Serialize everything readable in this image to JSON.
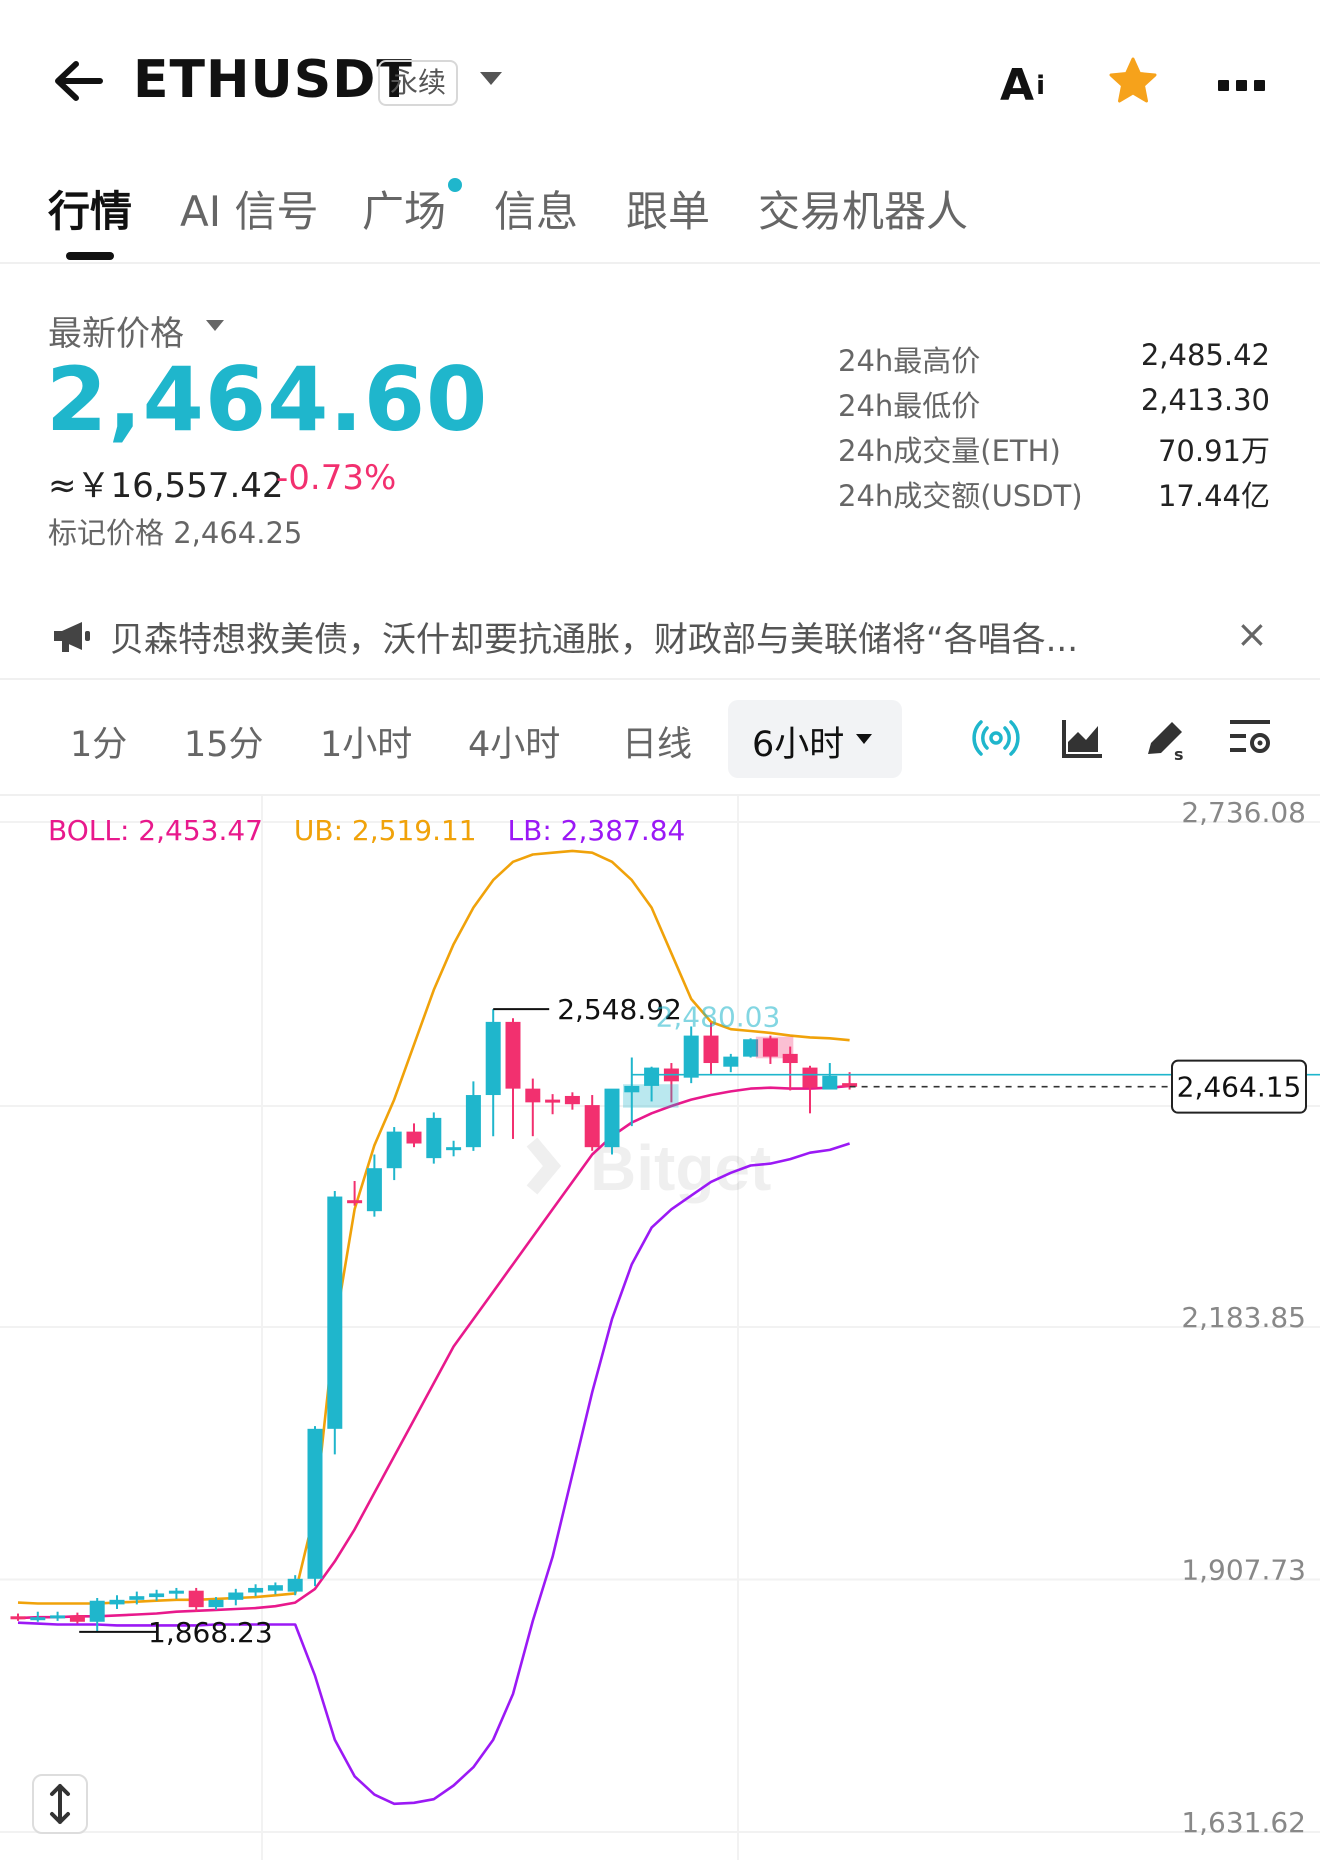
{
  "header": {
    "symbol": "ETHUSDT",
    "contract_type": "永续",
    "ai_label": "A",
    "ai_sub": "i"
  },
  "tabs": [
    {
      "label": "行情",
      "active": true
    },
    {
      "label": "AI 信号"
    },
    {
      "label": "广场",
      "has_dot": true
    },
    {
      "label": "信息"
    },
    {
      "label": "跟单"
    },
    {
      "label": "交易机器人"
    }
  ],
  "price": {
    "label": "最新价格",
    "last": "2,464.60",
    "cny": "≈￥16,557.42",
    "change": "-0.73%",
    "mark_label": "标记价格",
    "mark_value": "2,464.25",
    "stats": [
      {
        "label": "24h最高价",
        "value": "2,485.42"
      },
      {
        "label": "24h最低价",
        "value": "2,413.30"
      },
      {
        "label": "24h成交量(ETH)",
        "value": "70.91万"
      },
      {
        "label": "24h成交额(USDT)",
        "value": "17.44亿"
      }
    ]
  },
  "news": {
    "text": "贝森特想救美债，沃什却要抗通胀，财政部与美联储将“各唱各...",
    "close": "×"
  },
  "intervals": {
    "items": [
      "1分",
      "15分",
      "1小时",
      "4小时",
      "日线"
    ],
    "active": "6小时",
    "tools": [
      "broadcast-icon",
      "area-chart-icon",
      "drawing-pen-icon",
      "indicator-settings-icon"
    ]
  },
  "colors": {
    "up": "#1fb6cc",
    "down": "#f2306f",
    "ub": "#f0a20a",
    "mid": "#e8198c",
    "lb": "#9b19f5"
  },
  "chart_data": {
    "type": "candlestick",
    "indicator": {
      "boll_label": "BOLL: 2,453.47",
      "ub_label": "UB: 2,519.11",
      "lb_label": "LB: 2,387.84"
    },
    "y_ticks": [
      2736.08,
      2183.85,
      1907.73,
      1631.62
    ],
    "y_tick_labels": [
      "2,736.08",
      "2,183.85",
      "1,907.73",
      "1,631.62"
    ],
    "ylim": [
      1631.62,
      2736.08
    ],
    "annotations": {
      "high_label": "2,548.92",
      "low_label": "1,868.23",
      "faded_label": "2,480.03",
      "current_price": 2464.15,
      "current_label": "2,464.15"
    },
    "candles": [
      {
        "o": 1885,
        "h": 1888,
        "l": 1880,
        "c": 1882
      },
      {
        "o": 1882,
        "h": 1890,
        "l": 1879,
        "c": 1884
      },
      {
        "o": 1885,
        "h": 1890,
        "l": 1880,
        "c": 1886
      },
      {
        "o": 1886,
        "h": 1889,
        "l": 1877,
        "c": 1879
      },
      {
        "o": 1879,
        "h": 1905,
        "l": 1868,
        "c": 1902
      },
      {
        "o": 1898,
        "h": 1908,
        "l": 1893,
        "c": 1903
      },
      {
        "o": 1903,
        "h": 1912,
        "l": 1898,
        "c": 1907
      },
      {
        "o": 1906,
        "h": 1914,
        "l": 1902,
        "c": 1910
      },
      {
        "o": 1910,
        "h": 1916,
        "l": 1904,
        "c": 1913
      },
      {
        "o": 1913,
        "h": 1916,
        "l": 1890,
        "c": 1895
      },
      {
        "o": 1895,
        "h": 1906,
        "l": 1892,
        "c": 1903
      },
      {
        "o": 1903,
        "h": 1915,
        "l": 1897,
        "c": 1911
      },
      {
        "o": 1911,
        "h": 1920,
        "l": 1907,
        "c": 1916
      },
      {
        "o": 1913,
        "h": 1922,
        "l": 1909,
        "c": 1919
      },
      {
        "o": 1912,
        "h": 1930,
        "l": 1908,
        "c": 1926
      },
      {
        "o": 1926,
        "h": 2093,
        "l": 1918,
        "c": 2090
      },
      {
        "o": 2090,
        "h": 2350,
        "l": 2062,
        "c": 2344
      },
      {
        "o": 2340,
        "h": 2361,
        "l": 2334,
        "c": 2338
      },
      {
        "o": 2328,
        "h": 2390,
        "l": 2322,
        "c": 2375
      },
      {
        "o": 2375,
        "h": 2420,
        "l": 2362,
        "c": 2415
      },
      {
        "o": 2415,
        "h": 2424,
        "l": 2398,
        "c": 2402
      },
      {
        "o": 2386,
        "h": 2436,
        "l": 2380,
        "c": 2430
      },
      {
        "o": 2395,
        "h": 2405,
        "l": 2388,
        "c": 2398
      },
      {
        "o": 2398,
        "h": 2470,
        "l": 2394,
        "c": 2455
      },
      {
        "o": 2455,
        "h": 2549,
        "l": 2410,
        "c": 2535
      },
      {
        "o": 2535,
        "h": 2539,
        "l": 2407,
        "c": 2462
      },
      {
        "o": 2462,
        "h": 2473,
        "l": 2410,
        "c": 2447
      },
      {
        "o": 2450,
        "h": 2456,
        "l": 2434,
        "c": 2449
      },
      {
        "o": 2454,
        "h": 2458,
        "l": 2439,
        "c": 2445
      },
      {
        "o": 2444,
        "h": 2455,
        "l": 2394,
        "c": 2398
      },
      {
        "o": 2398,
        "h": 2456,
        "l": 2390,
        "c": 2462
      },
      {
        "o": 2458,
        "h": 2496,
        "l": 2421,
        "c": 2465
      },
      {
        "o": 2465,
        "h": 2486,
        "l": 2448,
        "c": 2485
      },
      {
        "o": 2484,
        "h": 2490,
        "l": 2447,
        "c": 2470
      },
      {
        "o": 2474,
        "h": 2530,
        "l": 2468,
        "c": 2520
      },
      {
        "o": 2520,
        "h": 2534,
        "l": 2477,
        "c": 2490
      },
      {
        "o": 2486,
        "h": 2500,
        "l": 2480,
        "c": 2497
      },
      {
        "o": 2497,
        "h": 2517,
        "l": 2496,
        "c": 2516
      },
      {
        "o": 2517,
        "h": 2520,
        "l": 2489,
        "c": 2497
      },
      {
        "o": 2500,
        "h": 2508,
        "l": 2460,
        "c": 2490
      },
      {
        "o": 2485,
        "h": 2487,
        "l": 2435,
        "c": 2463
      },
      {
        "o": 2461,
        "h": 2490,
        "l": 2463,
        "c": 2476
      },
      {
        "o": 2468,
        "h": 2480,
        "l": 2461,
        "c": 2464
      }
    ],
    "ub": [
      1900,
      1899,
      1899,
      1899,
      1899,
      1900,
      1901,
      1902,
      1903,
      1903,
      1904,
      1905,
      1906,
      1908,
      1910,
      2000,
      2200,
      2330,
      2400,
      2450,
      2510,
      2570,
      2620,
      2660,
      2690,
      2710,
      2718,
      2720,
      2722,
      2720,
      2710,
      2690,
      2660,
      2610,
      2560,
      2535,
      2527,
      2525,
      2523,
      2520,
      2518,
      2517,
      2515
    ],
    "mid": [
      1883,
      1884,
      1884,
      1885,
      1885,
      1886,
      1887,
      1888,
      1890,
      1891,
      1892,
      1893,
      1894,
      1896,
      1900,
      1915,
      1945,
      1980,
      2020,
      2060,
      2100,
      2140,
      2180,
      2210,
      2240,
      2270,
      2300,
      2330,
      2360,
      2390,
      2410,
      2425,
      2435,
      2443,
      2450,
      2455,
      2459,
      2462,
      2463,
      2462,
      2462,
      2463,
      2465
    ],
    "lb": [
      1878,
      1877,
      1876,
      1876,
      1876,
      1875,
      1875,
      1875,
      1875,
      1875,
      1876,
      1876,
      1876,
      1876,
      1876,
      1820,
      1750,
      1710,
      1690,
      1680,
      1681,
      1685,
      1700,
      1720,
      1750,
      1800,
      1880,
      1950,
      2040,
      2130,
      2210,
      2270,
      2310,
      2330,
      2345,
      2360,
      2370,
      2378,
      2380,
      2385,
      2392,
      2395,
      2402
    ]
  }
}
